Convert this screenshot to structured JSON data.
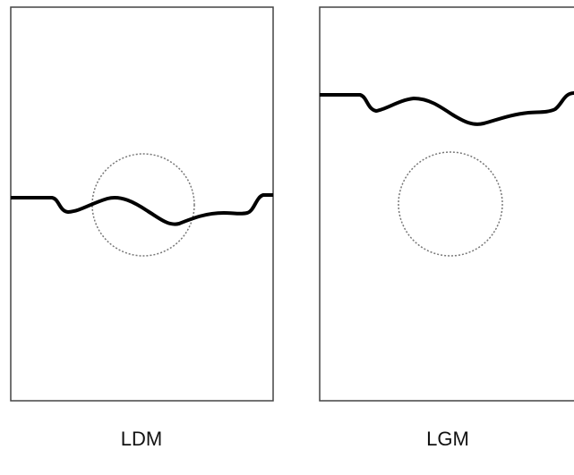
{
  "panels": [
    {
      "label": "LDM"
    },
    {
      "label": "LGM"
    }
  ]
}
